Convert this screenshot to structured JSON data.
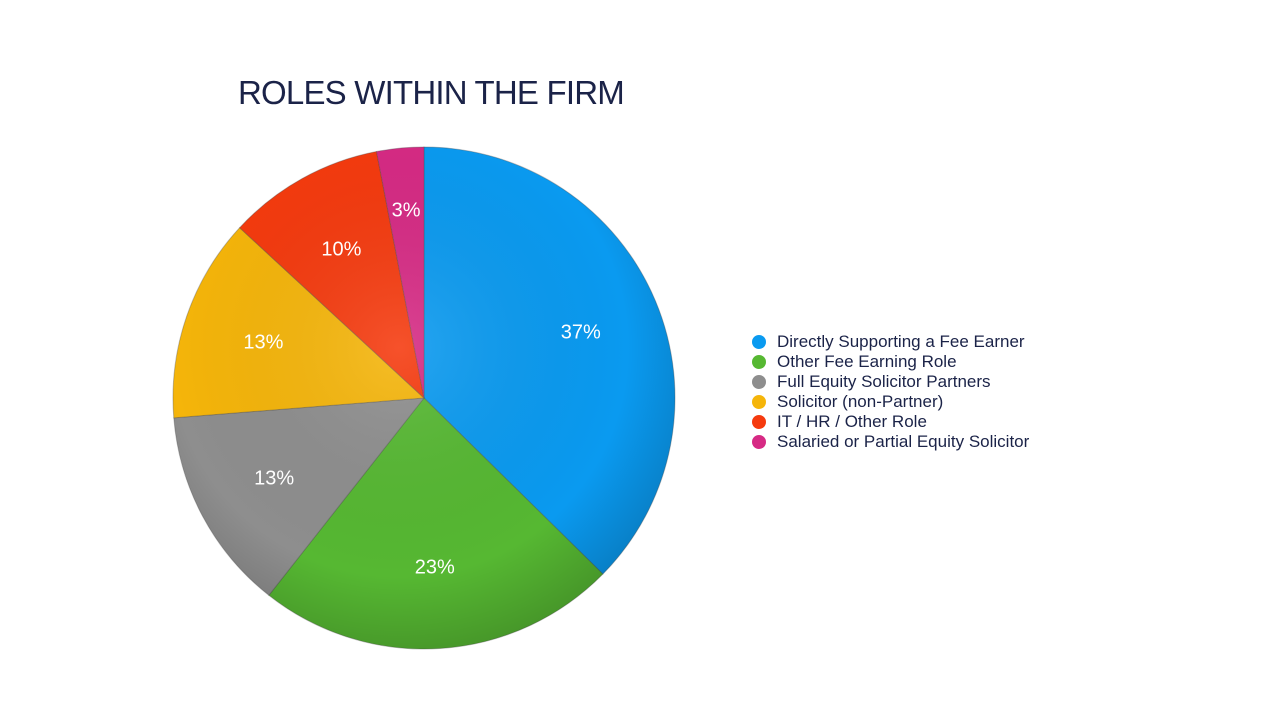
{
  "chart_data": {
    "type": "pie",
    "title": "ROLES WITHIN THE FIRM",
    "legend_position": "right",
    "slices": [
      {
        "name": "Directly Supporting a Fee Earner",
        "value": 37,
        "label": "37%",
        "color": "#0a9af0"
      },
      {
        "name": "Other Fee Earning Role",
        "value": 23,
        "label": "23%",
        "color": "#56b832"
      },
      {
        "name": "Full Equity Solicitor Partners",
        "value": 13,
        "label": "13%",
        "color": "#8e8e8e"
      },
      {
        "name": "Solicitor (non-Partner)",
        "value": 13,
        "label": "13%",
        "color": "#f5b50a"
      },
      {
        "name": "IT / HR / Other Role",
        "value": 10,
        "label": "10%",
        "color": "#f53a0e"
      },
      {
        "name": "Salaried or Partial Equity Solicitor",
        "value": 3,
        "label": "3%",
        "color": "#d62a84"
      }
    ]
  }
}
